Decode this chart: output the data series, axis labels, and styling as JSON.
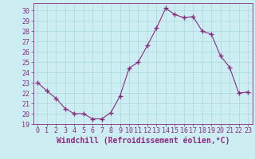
{
  "x": [
    0,
    1,
    2,
    3,
    4,
    5,
    6,
    7,
    8,
    9,
    10,
    11,
    12,
    13,
    14,
    15,
    16,
    17,
    18,
    19,
    20,
    21,
    22,
    23
  ],
  "y": [
    23.0,
    22.2,
    21.5,
    20.5,
    20.0,
    20.0,
    19.5,
    19.5,
    20.1,
    21.7,
    24.4,
    25.0,
    26.6,
    28.3,
    30.2,
    29.6,
    29.3,
    29.4,
    28.0,
    27.7,
    25.6,
    24.5,
    22.0,
    22.1
  ],
  "line_color": "#892b80",
  "marker": "+",
  "marker_size": 4,
  "marker_lw": 1.0,
  "xlabel": "Windchill (Refroidissement éolien,°C)",
  "xlabel_fontsize": 7,
  "ylabel_ticks": [
    19,
    20,
    21,
    22,
    23,
    24,
    25,
    26,
    27,
    28,
    29,
    30
  ],
  "xtick_labels": [
    "0",
    "1",
    "2",
    "3",
    "4",
    "5",
    "6",
    "7",
    "8",
    "9",
    "10",
    "11",
    "12",
    "13",
    "14",
    "15",
    "16",
    "17",
    "18",
    "19",
    "20",
    "21",
    "22",
    "23"
  ],
  "xlim": [
    -0.5,
    23.5
  ],
  "ylim": [
    19,
    30.7
  ],
  "background_color": "#cceef2",
  "grid_color": "#aad8dc",
  "tick_fontsize": 6,
  "line_width": 0.8
}
